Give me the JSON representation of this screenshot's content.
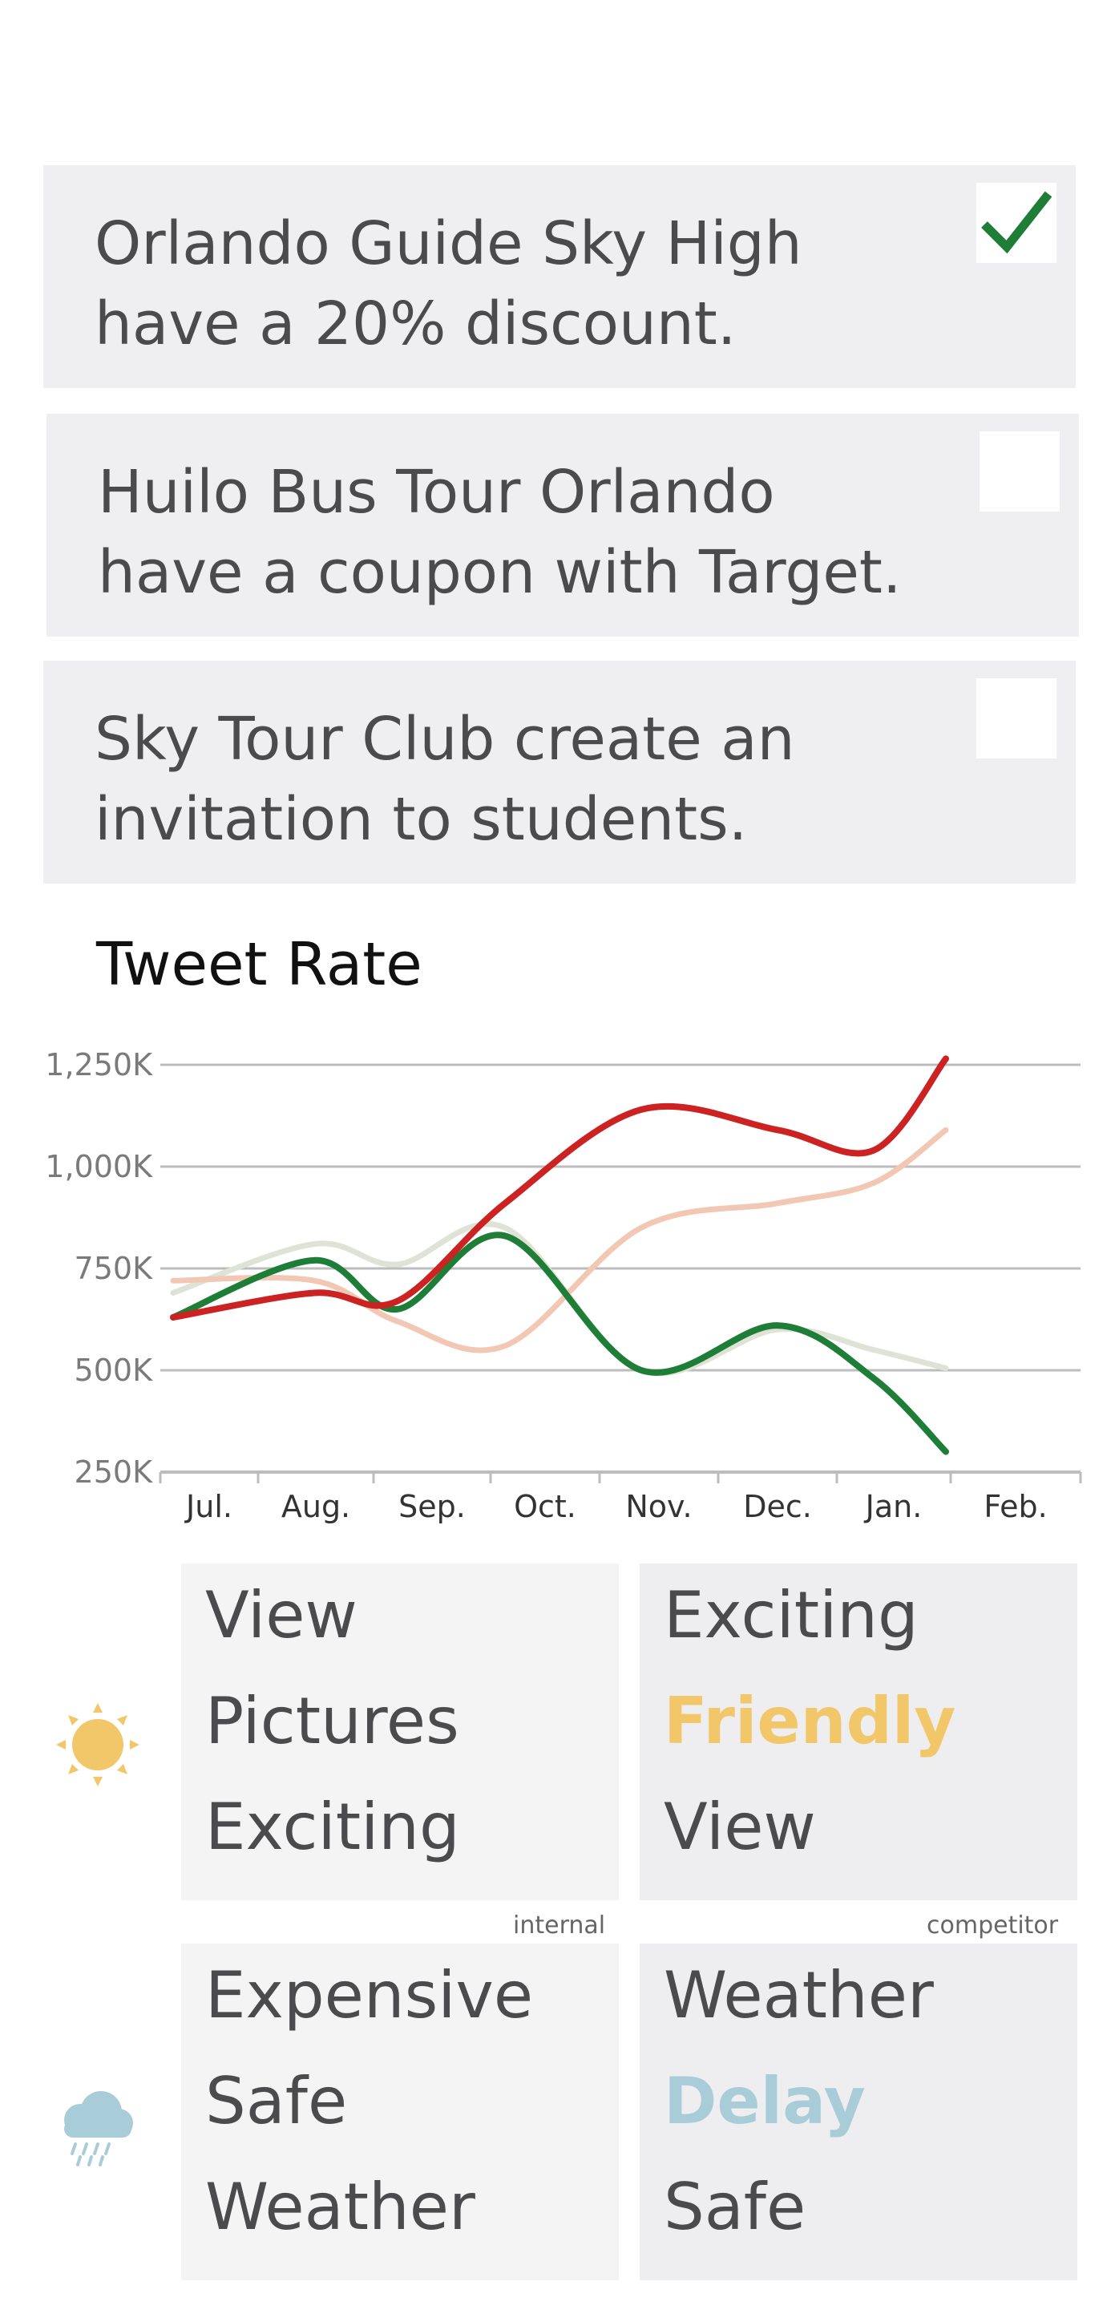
{
  "cards": [
    {
      "text": "Orlando Guide Sky High\nhave a 20% discount.",
      "checked": true
    },
    {
      "text": "Huilo Bus Tour Orlando\nhave a coupon with Target.",
      "checked": false
    },
    {
      "text": "Sky Tour Club create an\ninvitation to students.",
      "checked": false
    }
  ],
  "chart_data": {
    "type": "line",
    "title": "Tweet Rate",
    "categories": [
      "Jul.",
      "Aug.",
      "Sep.",
      "Oct.",
      "Nov.",
      "Dec.",
      "Jan.",
      "Feb."
    ],
    "y_ticks": [
      "1,250K",
      "1,000K",
      "750K",
      "500K",
      "250K"
    ],
    "ylim": [
      250,
      1250
    ],
    "grid": true,
    "series": [
      {
        "color": "#cc2222",
        "values": [
          630,
          690,
          670,
          910,
          1140,
          1090,
          1040,
          1265
        ]
      },
      {
        "color": "#f2c7b3",
        "values": [
          720,
          720,
          620,
          560,
          850,
          910,
          960,
          1090
        ]
      },
      {
        "color": "#dfe3d5",
        "values": [
          690,
          810,
          760,
          850,
          500,
          600,
          550,
          505
        ]
      },
      {
        "color": "#1e7d36",
        "values": [
          630,
          770,
          650,
          830,
          500,
          610,
          480,
          300
        ]
      }
    ]
  },
  "tiles": {
    "sunny_internal": {
      "words": [
        "View",
        "Pictures",
        "Exciting"
      ],
      "highlight": -1
    },
    "sunny_competitor": {
      "words": [
        "Exciting",
        "Friendly",
        "View"
      ],
      "highlight": 1,
      "highlight_color": "#f2c76a"
    },
    "rainy_internal": {
      "words": [
        "Expensive",
        "Safe",
        "Weather"
      ],
      "highlight": -1
    },
    "rainy_competitor": {
      "words": [
        "Weather",
        "Delay",
        "Safe"
      ],
      "highlight": 1,
      "highlight_color": "#a9cdd8"
    },
    "internal_caption": "internal",
    "competitor_caption": "competitor"
  },
  "icons": {
    "sunny": "sun-icon",
    "rainy": "rain-cloud-icon"
  },
  "colors": {
    "sun": "#f2c76a",
    "rain": "#a9cdd8",
    "check": "#1e7d36"
  }
}
